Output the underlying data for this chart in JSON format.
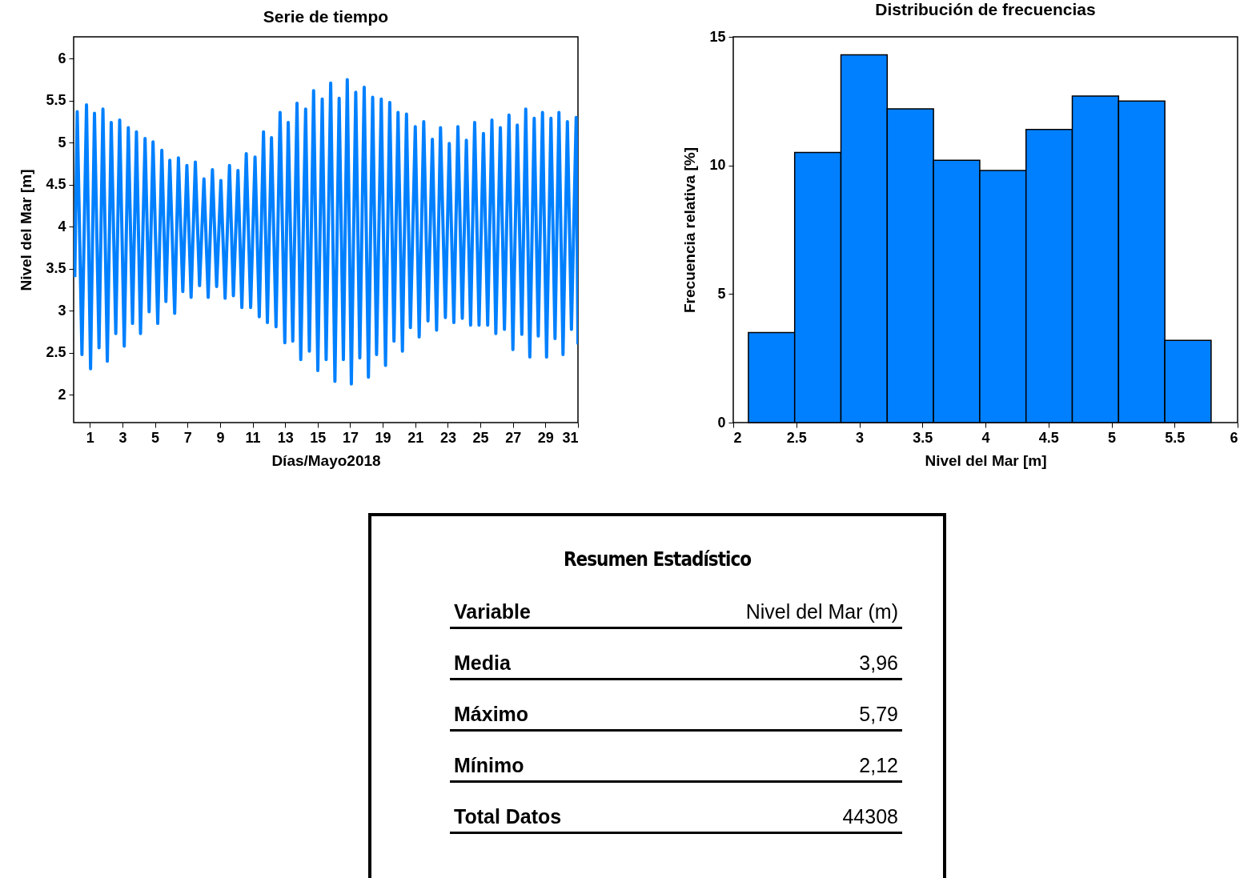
{
  "chart_data": [
    {
      "type": "line",
      "title": "Serie de tiempo",
      "xlabel": "Días/Mayo2018",
      "ylabel": "Nivel del Mar [m]",
      "x": [
        0.07,
        0.22,
        0.51,
        0.79,
        1.04,
        1.28,
        1.56,
        1.8,
        2.07,
        2.31,
        2.59,
        2.83,
        3.11,
        3.36,
        3.62,
        3.86,
        4.11,
        4.39,
        4.64,
        4.88,
        5.17,
        5.42,
        5.67,
        5.91,
        6.21,
        6.44,
        6.71,
        6.96,
        7.22,
        7.48,
        7.74,
        8.01,
        8.27,
        8.53,
        8.79,
        9.05,
        9.31,
        9.58,
        9.82,
        10.1,
        10.34,
        10.61,
        10.88,
        11.15,
        11.41,
        11.67,
        11.91,
        12.16,
        12.44,
        12.69,
        12.98,
        13.19,
        13.47,
        13.73,
        13.96,
        14.26,
        14.49,
        14.75,
        15.01,
        15.28,
        15.52,
        15.8,
        16.06,
        16.32,
        16.58,
        16.82,
        17.07,
        17.34,
        17.59,
        17.86,
        18.12,
        18.38,
        18.62,
        18.91,
        19.17,
        19.43,
        19.69,
        19.94,
        20.21,
        20.46,
        20.7,
        21.0,
        21.24,
        21.52,
        21.78,
        22.05,
        22.31,
        22.55,
        22.85,
        23.09,
        23.37,
        23.62,
        23.89,
        24.14,
        24.4,
        24.65,
        24.92,
        25.19,
        25.45,
        25.71,
        25.95,
        26.23,
        26.48,
        26.76,
        27.0,
        27.27,
        27.55,
        27.79,
        28.04,
        28.31,
        28.56,
        28.82,
        29.07,
        29.34,
        29.59,
        29.83,
        30.08,
        30.35,
        30.6,
        30.89,
        31.0
      ],
      "series": [
        {
          "color": "#0080ff",
          "values": [
            3.4,
            5.37,
            2.48,
            5.45,
            2.31,
            5.35,
            2.56,
            5.4,
            2.4,
            5.24,
            2.73,
            5.27,
            2.58,
            5.18,
            2.85,
            5.13,
            2.73,
            5.05,
            2.99,
            5.01,
            2.85,
            4.91,
            3.11,
            4.79,
            2.97,
            4.82,
            3.23,
            4.73,
            3.16,
            4.77,
            3.3,
            4.57,
            3.16,
            4.68,
            3.29,
            4.55,
            3.15,
            4.73,
            3.18,
            4.67,
            3.04,
            4.87,
            3.04,
            4.83,
            2.93,
            5.13,
            2.86,
            5.06,
            2.81,
            5.36,
            2.62,
            5.24,
            2.64,
            5.47,
            2.42,
            5.4,
            2.52,
            5.62,
            2.29,
            5.52,
            2.42,
            5.71,
            2.16,
            5.53,
            2.42,
            5.75,
            2.13,
            5.6,
            2.44,
            5.66,
            2.21,
            5.54,
            2.48,
            5.52,
            2.35,
            5.48,
            2.64,
            5.36,
            2.52,
            5.34,
            2.8,
            5.19,
            2.69,
            5.25,
            2.88,
            5.04,
            2.77,
            5.18,
            2.92,
            4.99,
            2.86,
            5.19,
            2.91,
            5.03,
            2.83,
            5.24,
            2.83,
            5.11,
            2.83,
            5.27,
            2.73,
            5.18,
            2.78,
            5.33,
            2.54,
            5.21,
            2.72,
            5.4,
            2.45,
            5.29,
            2.7,
            5.36,
            2.45,
            5.29,
            2.67,
            5.36,
            2.48,
            5.25,
            2.78,
            5.3,
            2.6
          ]
        }
      ],
      "xlim": [
        0,
        31
      ],
      "xticks": [
        1,
        3,
        5,
        7,
        9,
        11,
        13,
        15,
        17,
        19,
        21,
        23,
        25,
        27,
        29,
        31
      ],
      "ylim": [
        1.67,
        6.26
      ],
      "yticks": [
        2,
        2.5,
        3,
        3.5,
        4,
        4.5,
        5,
        5.5,
        6
      ]
    },
    {
      "type": "histogram",
      "title": "Distribución de frecuencias",
      "xlabel": "Nivel del Mar [m]",
      "ylabel": "Frecuencia relativa [%]",
      "bins": [
        2.12,
        2.487,
        2.854,
        3.221,
        3.588,
        3.955,
        4.322,
        4.689,
        5.056,
        5.423,
        5.79
      ],
      "values": [
        3.5,
        10.5,
        14.3,
        12.2,
        10.2,
        9.8,
        11.4,
        12.7,
        12.5,
        3.2
      ],
      "color": "#0080ff",
      "xlim": [
        2,
        6
      ],
      "xticks": [
        2,
        2.5,
        3,
        3.5,
        4,
        4.5,
        5,
        5.5,
        6
      ],
      "ylim": [
        0,
        15
      ],
      "yticks": [
        0,
        5,
        10,
        15
      ]
    },
    {
      "type": "other",
      "title": "Resumen Estadístico",
      "annotations": [
        "Variable",
        "Nivel del Mar (m)",
        "Media",
        "3,96",
        "Máximo",
        "5,79",
        "Mínimo",
        "2,12",
        "Total Datos",
        "44308"
      ]
    }
  ]
}
